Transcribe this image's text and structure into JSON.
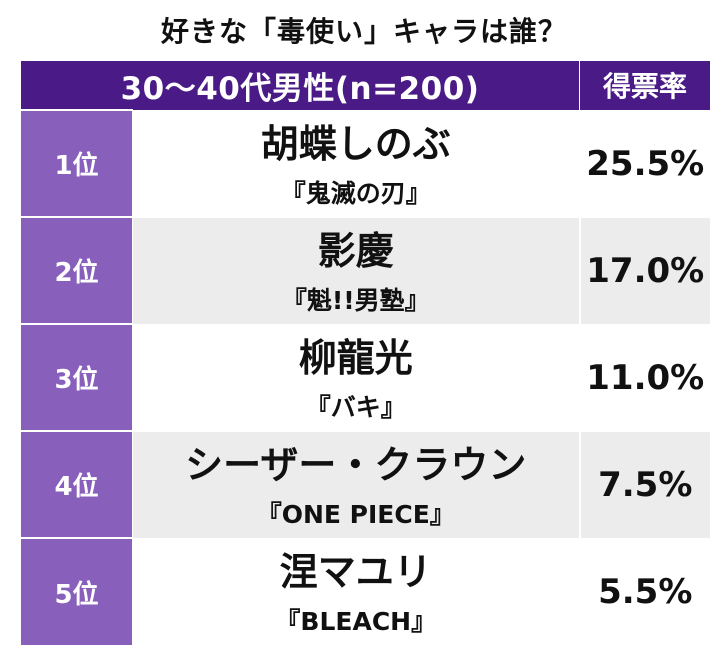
{
  "title": "好きな「毒使い」キャラは誰？",
  "chart_data": {
    "type": "table",
    "title": "好きな「毒使い」キャラは誰？",
    "group_label": "30〜40代男性(n=200)",
    "value_header": "得票率",
    "unit": "%",
    "rows": [
      {
        "rank": "1位",
        "character": "胡蝶しのぶ",
        "work": "『鬼滅の刃』",
        "value": 25.5,
        "value_label": "25.5%"
      },
      {
        "rank": "2位",
        "character": "影慶",
        "work": "『魁!!男塾』",
        "value": 17.0,
        "value_label": "17.0%"
      },
      {
        "rank": "3位",
        "character": "柳龍光",
        "work": "『バキ』",
        "value": 11.0,
        "value_label": "11.0%"
      },
      {
        "rank": "4位",
        "character": "シーザー・クラウン",
        "work": "『ONE PIECE』",
        "value": 7.5,
        "value_label": "7.5%"
      },
      {
        "rank": "5位",
        "character": "涅マユリ",
        "work": "『BLEACH』",
        "value": 5.5,
        "value_label": "5.5%"
      }
    ]
  },
  "colors": {
    "header_bg": "#4a1a86",
    "rank_bg": "#8860bb",
    "row_alt_bg": "#ececec"
  }
}
